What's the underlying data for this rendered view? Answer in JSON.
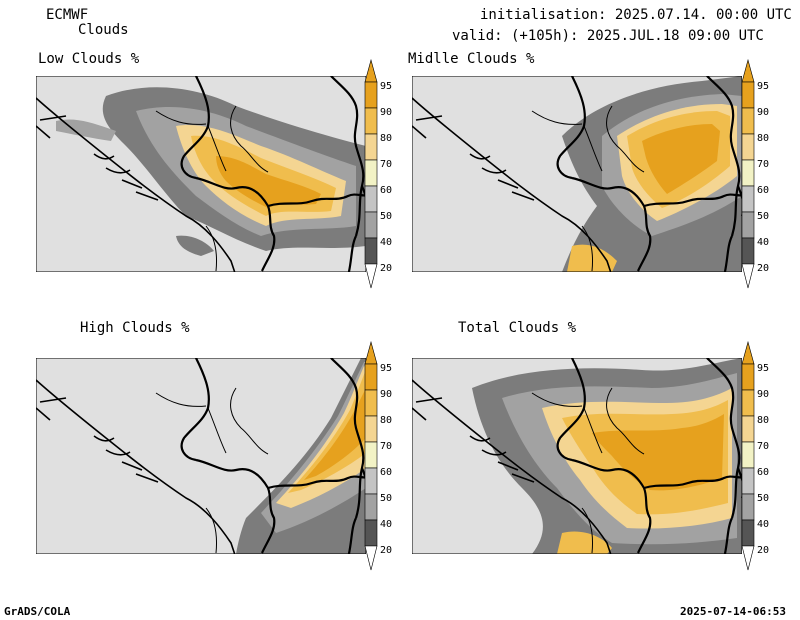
{
  "header": {
    "model": "ECMWF",
    "product": "Clouds",
    "init_line": "initialisation: 2025.07.14. 00:00 UTC",
    "valid_line": "valid: (+105h): 2025.JUL.18 09:00 UTC"
  },
  "panels": [
    {
      "title": "Low Clouds %"
    },
    {
      "title": "Midlle Clouds %"
    },
    {
      "title": "High Clouds %"
    },
    {
      "title": "Total Clouds %"
    }
  ],
  "colorbar": {
    "labels": [
      "95",
      "90",
      "80",
      "70",
      "60",
      "50",
      "40",
      "20"
    ],
    "colors": [
      "#e6a11e",
      "#f0bd4d",
      "#f4d592",
      "#f2f2c5",
      "#c4c4c4",
      "#a2a2a2",
      "#7c7c7c",
      "#555555"
    ]
  },
  "footer": {
    "left": "GrADS/COLA",
    "right": "2025-07-14-06:53"
  }
}
